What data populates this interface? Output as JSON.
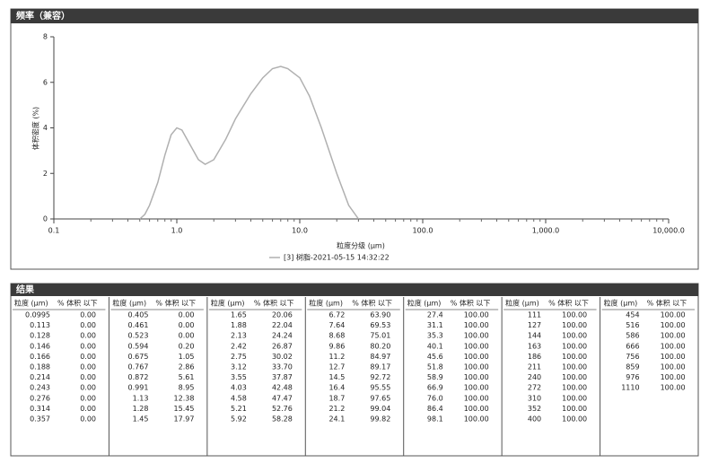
{
  "header": {
    "title": "频率（兼容）"
  },
  "chart_data": {
    "type": "line",
    "ylabel": "体积密度 (%)",
    "xlabel": "粒度分级 (μm)",
    "log_x": true,
    "grid": false,
    "xlim": [
      0.1,
      10000
    ],
    "ylim": [
      0,
      8
    ],
    "xticks": [
      {
        "value": 0.1,
        "label": "0.1"
      },
      {
        "value": 1,
        "label": "1.0"
      },
      {
        "value": 10,
        "label": "10.0"
      },
      {
        "value": 100,
        "label": "100.0"
      },
      {
        "value": 1000,
        "label": "1,000.0"
      },
      {
        "value": 10000,
        "label": "10,000.0"
      }
    ],
    "yticks": [
      0,
      2,
      4,
      6,
      8
    ],
    "x": [
      0.5,
      0.55,
      0.6,
      0.7,
      0.8,
      0.9,
      1.0,
      1.1,
      1.3,
      1.5,
      1.7,
      2.0,
      2.5,
      3,
      4,
      5,
      6,
      7,
      8,
      10,
      12,
      15,
      20,
      25,
      30
    ],
    "series": [
      {
        "name": "[3] 树脂-2021-05-15 14:32:22",
        "color": "#b0b0b0",
        "values": [
          0,
          0.2,
          0.6,
          1.6,
          2.8,
          3.7,
          4.0,
          3.9,
          3.2,
          2.6,
          2.4,
          2.6,
          3.5,
          4.4,
          5.5,
          6.2,
          6.6,
          6.7,
          6.6,
          6.2,
          5.4,
          4.0,
          2.0,
          0.6,
          0
        ]
      }
    ]
  },
  "results": {
    "title": "结果",
    "headers": [
      "粒度 (μm)",
      "% 体积 以下"
    ],
    "groups": [
      [
        [
          "0.0995",
          "0.00"
        ],
        [
          "0.113",
          "0.00"
        ],
        [
          "0.128",
          "0.00"
        ],
        [
          "0.146",
          "0.00"
        ],
        [
          "0.166",
          "0.00"
        ],
        [
          "0.188",
          "0.00"
        ],
        [
          "0.214",
          "0.00"
        ],
        [
          "0.243",
          "0.00"
        ],
        [
          "0.276",
          "0.00"
        ],
        [
          "0.314",
          "0.00"
        ],
        [
          "0.357",
          "0.00"
        ]
      ],
      [
        [
          "0.405",
          "0.00"
        ],
        [
          "0.461",
          "0.00"
        ],
        [
          "0.523",
          "0.00"
        ],
        [
          "0.594",
          "0.20"
        ],
        [
          "0.675",
          "1.05"
        ],
        [
          "0.767",
          "2.86"
        ],
        [
          "0.872",
          "5.61"
        ],
        [
          "0.991",
          "8.95"
        ],
        [
          "1.13",
          "12.38"
        ],
        [
          "1.28",
          "15.45"
        ],
        [
          "1.45",
          "17.97"
        ]
      ],
      [
        [
          "1.65",
          "20.06"
        ],
        [
          "1.88",
          "22.04"
        ],
        [
          "2.13",
          "24.24"
        ],
        [
          "2.42",
          "26.87"
        ],
        [
          "2.75",
          "30.02"
        ],
        [
          "3.12",
          "33.70"
        ],
        [
          "3.55",
          "37.87"
        ],
        [
          "4.03",
          "42.48"
        ],
        [
          "4.58",
          "47.47"
        ],
        [
          "5.21",
          "52.76"
        ],
        [
          "5.92",
          "58.28"
        ]
      ],
      [
        [
          "6.72",
          "63.90"
        ],
        [
          "7.64",
          "69.53"
        ],
        [
          "8.68",
          "75.01"
        ],
        [
          "9.86",
          "80.20"
        ],
        [
          "11.2",
          "84.97"
        ],
        [
          "12.7",
          "89.17"
        ],
        [
          "14.5",
          "92.72"
        ],
        [
          "16.4",
          "95.55"
        ],
        [
          "18.7",
          "97.65"
        ],
        [
          "21.2",
          "99.04"
        ],
        [
          "24.1",
          "99.82"
        ]
      ],
      [
        [
          "27.4",
          "100.00"
        ],
        [
          "31.1",
          "100.00"
        ],
        [
          "35.3",
          "100.00"
        ],
        [
          "40.1",
          "100.00"
        ],
        [
          "45.6",
          "100.00"
        ],
        [
          "51.8",
          "100.00"
        ],
        [
          "58.9",
          "100.00"
        ],
        [
          "66.9",
          "100.00"
        ],
        [
          "76.0",
          "100.00"
        ],
        [
          "86.4",
          "100.00"
        ],
        [
          "98.1",
          "100.00"
        ]
      ],
      [
        [
          "111",
          "100.00"
        ],
        [
          "127",
          "100.00"
        ],
        [
          "144",
          "100.00"
        ],
        [
          "163",
          "100.00"
        ],
        [
          "186",
          "100.00"
        ],
        [
          "211",
          "100.00"
        ],
        [
          "240",
          "100.00"
        ],
        [
          "272",
          "100.00"
        ],
        [
          "310",
          "100.00"
        ],
        [
          "352",
          "100.00"
        ],
        [
          "400",
          "100.00"
        ]
      ],
      [
        [
          "454",
          "100.00"
        ],
        [
          "516",
          "100.00"
        ],
        [
          "586",
          "100.00"
        ],
        [
          "666",
          "100.00"
        ],
        [
          "756",
          "100.00"
        ],
        [
          "859",
          "100.00"
        ],
        [
          "976",
          "100.00"
        ],
        [
          "1110",
          "100.00"
        ]
      ]
    ]
  }
}
